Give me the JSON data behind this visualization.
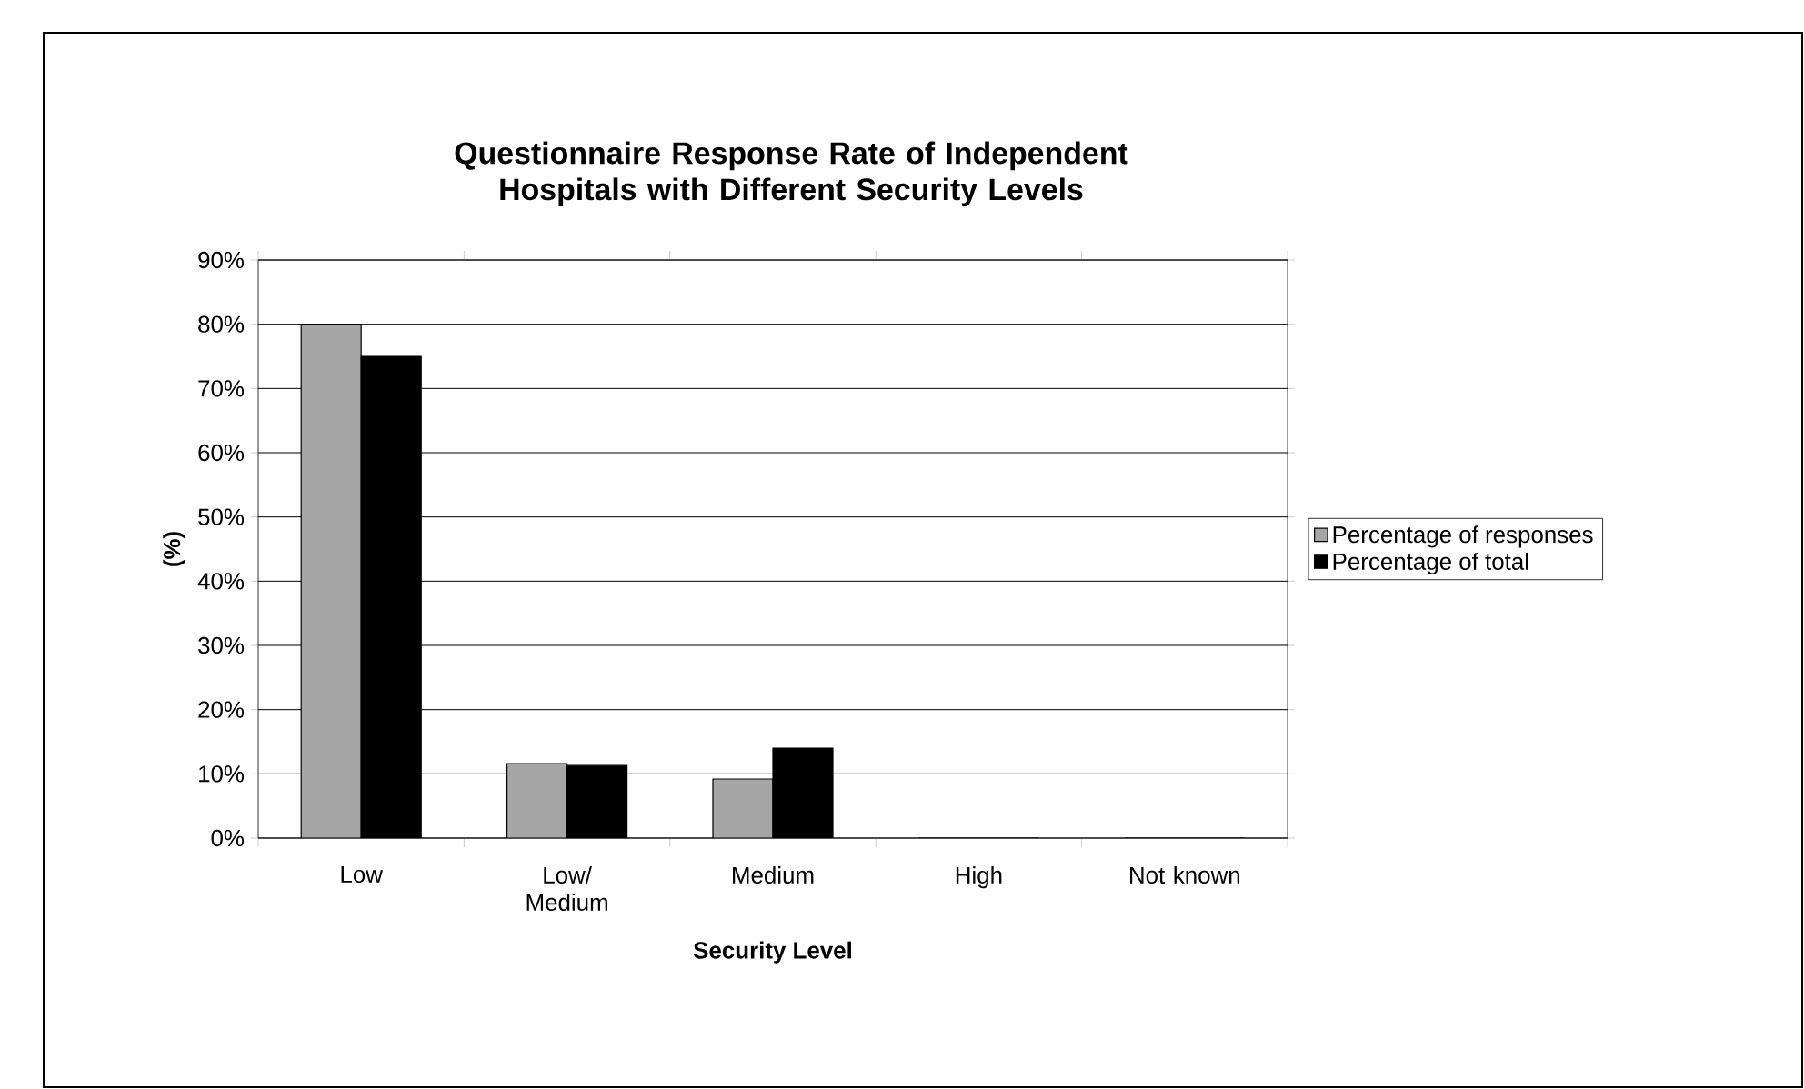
{
  "chart_data": {
    "type": "bar",
    "title": "Questionnaire Response Rate of Independent Hospitals with Different Security Levels",
    "xlabel": "Security Level",
    "ylabel": "(%)",
    "categories": [
      "Low",
      "Low/ Medium",
      "Medium",
      "High",
      "Not known"
    ],
    "series": [
      {
        "name": "Percentage of responses",
        "color": "#a6a6a6",
        "values": [
          80,
          11.6,
          9.2,
          0,
          0
        ]
      },
      {
        "name": "Percentage of total",
        "color": "#000000",
        "values": [
          75,
          11.3,
          14,
          0,
          0
        ]
      }
    ],
    "ylim": [
      0,
      90
    ],
    "yticks": [
      {
        "value": 0,
        "label": "0%"
      },
      {
        "value": 10,
        "label": "10%"
      },
      {
        "value": 20,
        "label": "20%"
      },
      {
        "value": 30,
        "label": "30%"
      },
      {
        "value": 40,
        "label": "40%"
      },
      {
        "value": 50,
        "label": "50%"
      },
      {
        "value": 60,
        "label": "60%"
      },
      {
        "value": 70,
        "label": "70%"
      },
      {
        "value": 80,
        "label": "80%"
      },
      {
        "value": 90,
        "label": "90%"
      }
    ],
    "grid": "y",
    "legend": "right"
  }
}
